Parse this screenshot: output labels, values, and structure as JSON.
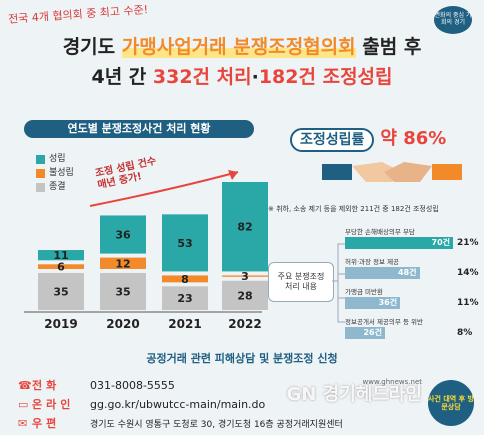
{
  "top_tag": "전국 4개 협의회 중 최고 수준!",
  "badge_text": "변화의 중심 기회의 경기",
  "title": {
    "line1_prefix": "경기도 ",
    "line1_highlight": "가맹사업거래 분쟁조정협의회",
    "line1_suffix": " 출범 후",
    "line2_prefix": "4년 간 ",
    "line2_a": "332건 처리",
    "line2_sep": "·",
    "line2_b": "182건 조정성립"
  },
  "chart_header": "연도별 분쟁조정사건 처리 현황",
  "growth_note_line1": "조정 성립 건수",
  "growth_note_line2": "매년 증가!",
  "chart_data": {
    "type": "bar",
    "stacked": true,
    "categories": [
      "2019",
      "2020",
      "2021",
      "2022"
    ],
    "series": [
      {
        "name": "종결",
        "values": [
          35,
          35,
          23,
          28
        ],
        "color": "#c4c4c4"
      },
      {
        "name": "불성립",
        "values": [
          6,
          12,
          8,
          3
        ],
        "color": "#f28a2a"
      },
      {
        "name": "성립",
        "values": [
          11,
          36,
          53,
          82
        ],
        "color": "#2aa8a8"
      }
    ],
    "legend_position": "top-left"
  },
  "success_rate": {
    "label": "조정성립률",
    "value": "약 86%"
  },
  "footnote": "※ 취하, 소송 제기 등을 제외한 211건 중 182건 조정성립",
  "breakdown": {
    "label_line1": "주요 분쟁조정",
    "label_line2": "처리 내용",
    "rows": [
      {
        "label": "부당한 손해배상의무 부담",
        "count": "70건",
        "pct": "21%",
        "fraction": 1.0
      },
      {
        "label": "허위·과장 정보 제공",
        "count": "48건",
        "pct": "14%",
        "fraction": 0.69
      },
      {
        "label": "가맹금 미반환",
        "count": "36건",
        "pct": "11%",
        "fraction": 0.51
      },
      {
        "label": "정보공개서 제공의무 등 위반",
        "count": "26건",
        "pct": "8%",
        "fraction": 0.37
      }
    ]
  },
  "apply_title": "공정거래 관련 피해상담 및 분쟁조정 신청",
  "contacts": [
    {
      "icon": "phone-icon",
      "glyph": "☎",
      "key": "전화",
      "value": "031-8008-5555"
    },
    {
      "icon": "computer-icon",
      "glyph": "▭",
      "key": "온라인",
      "value": "gg.go.kr/ubwutcc-main/main.do"
    },
    {
      "icon": "mail-icon",
      "glyph": "✉",
      "key": "우편",
      "value": "경기도 수원시 영통구 도청로 30, 경기도청 16층 공정거래지원센터"
    }
  ],
  "watermark": "GN 경기헤드라인",
  "watermark_url": "www.ghnews.net",
  "stamp_text": "사건 대역 후 방문상담"
}
